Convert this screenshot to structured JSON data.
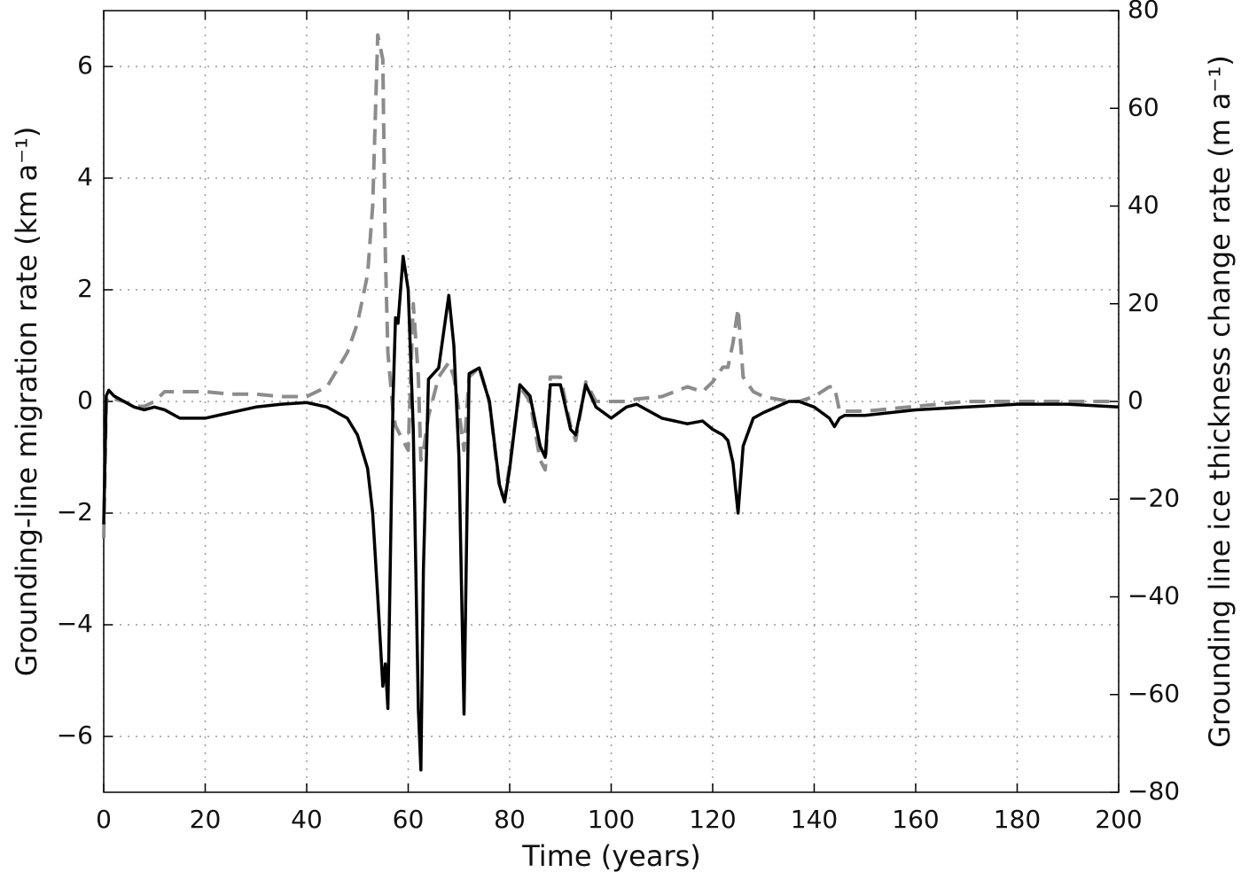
{
  "chart_data": {
    "type": "line",
    "x_label": "Time (years)",
    "y_label": "Grounding-line migration rate (km a⁻¹)",
    "y2_label": "Grounding line ice thickness change rate (m a⁻¹)",
    "x": [
      0,
      0.5,
      1,
      2,
      4,
      6,
      8,
      10,
      12,
      15,
      20,
      25,
      30,
      35,
      40,
      44,
      48,
      50,
      52,
      53,
      54,
      55,
      55.5,
      56,
      57,
      57.5,
      58,
      59,
      60,
      61,
      62,
      62.5,
      63,
      64,
      66,
      68,
      69,
      70,
      71,
      72,
      74,
      76,
      78,
      79,
      80,
      82,
      84,
      86,
      87,
      88,
      90,
      92,
      93,
      95,
      97,
      100,
      103,
      105,
      110,
      115,
      118,
      120,
      122,
      123,
      124,
      125,
      126,
      128,
      130,
      135,
      137,
      140,
      143,
      144,
      145,
      146,
      150,
      160,
      170,
      180,
      190,
      200
    ],
    "series": [
      {
        "color": "#000000",
        "style": "solid",
        "axis": "y",
        "values": [
          -2.2,
          0.1,
          0.2,
          0.1,
          0,
          -0.1,
          -0.15,
          -0.1,
          -0.15,
          -0.3,
          -0.3,
          -0.2,
          -0.1,
          -0.05,
          -0.02,
          -0.1,
          -0.3,
          -0.6,
          -1.2,
          -2,
          -3.5,
          -5.1,
          -4.7,
          -5.5,
          0,
          1.5,
          1.4,
          2.6,
          2,
          -0.5,
          -5.5,
          -6.6,
          -3,
          0.4,
          0.6,
          1.9,
          1,
          -1,
          -5.6,
          0.5,
          0.6,
          0,
          -1.5,
          -1.8,
          -1.2,
          0.3,
          0.1,
          -0.8,
          -1,
          0.3,
          0.3,
          -0.5,
          -0.6,
          0.3,
          -0.1,
          -0.3,
          -0.1,
          -0.05,
          -0.3,
          -0.4,
          -0.35,
          -0.5,
          -0.6,
          -0.7,
          -1.1,
          -2,
          -0.8,
          -0.3,
          -0.2,
          0,
          0,
          -0.1,
          -0.3,
          -0.45,
          -0.3,
          -0.25,
          -0.25,
          -0.15,
          -0.1,
          -0.05,
          -0.05,
          -0.1
        ]
      },
      {
        "color": "#8c8c8c",
        "style": "dashed",
        "axis": "y2",
        "values": [
          -28,
          0,
          1,
          0.5,
          0,
          -1,
          -1,
          0,
          2,
          2,
          2,
          1.5,
          1.5,
          1,
          1,
          3,
          10,
          16,
          26,
          40,
          75,
          70,
          30,
          10,
          -2,
          -5,
          -6,
          -8,
          -10,
          20,
          5,
          -12,
          -10,
          -3,
          5,
          8,
          5,
          -2,
          -10,
          5,
          7,
          0,
          -18,
          -20,
          -13,
          3,
          0,
          -12,
          -14,
          5,
          5,
          -5,
          -8,
          4,
          0,
          0,
          0,
          0.5,
          1,
          3,
          2,
          4,
          7,
          7,
          12,
          19,
          5,
          2,
          1,
          0,
          0,
          1,
          3,
          3,
          -2,
          -2,
          -2,
          -1,
          0,
          0,
          0,
          0
        ]
      }
    ],
    "xlim": [
      0,
      200
    ],
    "xticks": [
      0,
      20,
      40,
      60,
      80,
      100,
      120,
      140,
      160,
      180,
      200
    ],
    "ylim": [
      -7,
      7
    ],
    "yticks": [
      {
        "value": -6,
        "label": "−6"
      },
      {
        "value": -4,
        "label": "−4"
      },
      {
        "value": -2,
        "label": "−2"
      },
      0,
      2,
      4,
      6
    ],
    "y2lim": [
      -80,
      80
    ],
    "y2ticks": [
      {
        "value": -80,
        "label": "−80"
      },
      {
        "value": -60,
        "label": "−60"
      },
      {
        "value": -40,
        "label": "−40"
      },
      {
        "value": -20,
        "label": "−20"
      },
      0,
      20,
      40,
      60,
      80
    ],
    "grid": true
  }
}
